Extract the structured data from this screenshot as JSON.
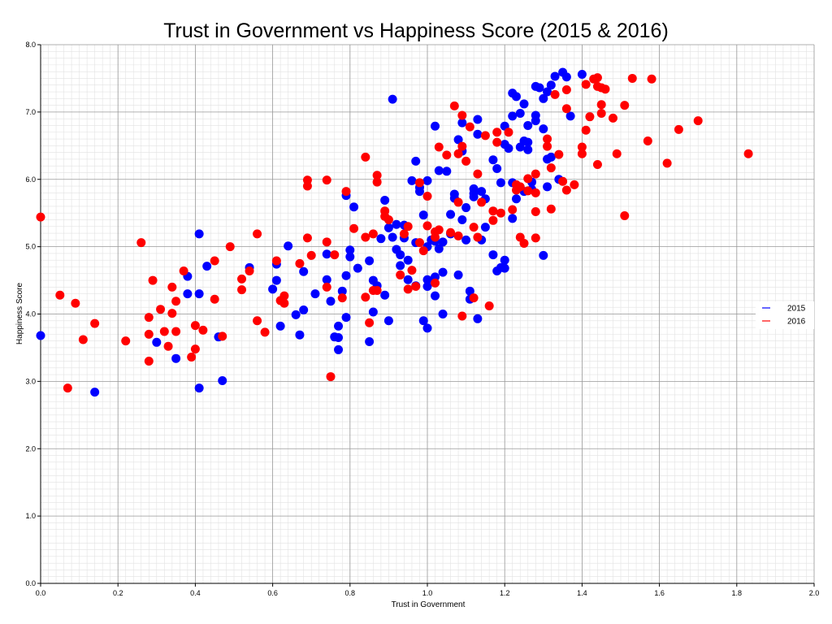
{
  "chart_data": {
    "type": "scatter",
    "title": "Trust in Government vs Happiness Score (2015 & 2016)",
    "xlabel": "Trust in Government",
    "ylabel": "Happiness Score",
    "xlim": [
      0,
      2
    ],
    "ylim": [
      0,
      8
    ],
    "x_ticks": [
      "0.0",
      "0.2",
      "0.4",
      "0.6",
      "0.8",
      "1.0",
      "1.2",
      "1.4",
      "1.6",
      "1.8",
      "2.0"
    ],
    "y_ticks": [
      "0.0",
      "1.0",
      "2.0",
      "3.0",
      "4.0",
      "5.0",
      "6.0",
      "7.0",
      "8.0"
    ],
    "grid": true,
    "legend_position": "right",
    "series": [
      {
        "name": "2015",
        "color": "#0000ff",
        "points": [
          [
            0.0,
            3.68
          ],
          [
            0.14,
            2.84
          ],
          [
            0.3,
            3.58
          ],
          [
            0.35,
            3.34
          ],
          [
            0.38,
            4.3
          ],
          [
            0.38,
            4.56
          ],
          [
            0.41,
            2.9
          ],
          [
            0.41,
            4.3
          ],
          [
            0.41,
            5.19
          ],
          [
            0.43,
            4.71
          ],
          [
            0.46,
            3.66
          ],
          [
            0.47,
            3.01
          ],
          [
            0.54,
            4.69
          ],
          [
            0.6,
            4.37
          ],
          [
            0.61,
            4.74
          ],
          [
            0.61,
            4.5
          ],
          [
            0.62,
            3.82
          ],
          [
            0.64,
            5.01
          ],
          [
            0.66,
            3.99
          ],
          [
            0.67,
            3.69
          ],
          [
            0.68,
            4.06
          ],
          [
            0.68,
            4.63
          ],
          [
            0.71,
            4.3
          ],
          [
            0.74,
            4.89
          ],
          [
            0.74,
            4.51
          ],
          [
            0.75,
            4.19
          ],
          [
            0.76,
            3.66
          ],
          [
            0.77,
            3.47
          ],
          [
            0.77,
            3.65
          ],
          [
            0.77,
            3.82
          ],
          [
            0.78,
            4.34
          ],
          [
            0.79,
            4.57
          ],
          [
            0.79,
            3.95
          ],
          [
            0.79,
            5.76
          ],
          [
            0.8,
            4.95
          ],
          [
            0.8,
            4.85
          ],
          [
            0.81,
            5.59
          ],
          [
            0.82,
            4.68
          ],
          [
            0.85,
            3.59
          ],
          [
            0.85,
            4.79
          ],
          [
            0.86,
            4.03
          ],
          [
            0.86,
            4.5
          ],
          [
            0.87,
            4.42
          ],
          [
            0.88,
            5.12
          ],
          [
            0.89,
            4.28
          ],
          [
            0.89,
            5.69
          ],
          [
            0.9,
            5.28
          ],
          [
            0.9,
            3.9
          ],
          [
            0.91,
            5.14
          ],
          [
            0.91,
            7.19
          ],
          [
            0.92,
            4.96
          ],
          [
            0.92,
            5.33
          ],
          [
            0.93,
            4.72
          ],
          [
            0.93,
            4.88
          ],
          [
            0.94,
            5.13
          ],
          [
            0.94,
            5.32
          ],
          [
            0.95,
            4.8
          ],
          [
            0.95,
            4.51
          ],
          [
            0.96,
            5.98
          ],
          [
            0.97,
            4.42
          ],
          [
            0.97,
            5.06
          ],
          [
            0.97,
            6.27
          ],
          [
            0.98,
            5.82
          ],
          [
            0.98,
            5.88
          ],
          [
            0.99,
            3.9
          ],
          [
            0.99,
            5.47
          ],
          [
            1.0,
            4.41
          ],
          [
            1.0,
            4.51
          ],
          [
            1.0,
            5.0
          ],
          [
            1.0,
            3.79
          ],
          [
            1.0,
            5.98
          ],
          [
            1.01,
            5.1
          ],
          [
            1.02,
            5.08
          ],
          [
            1.02,
            4.55
          ],
          [
            1.02,
            4.27
          ],
          [
            1.02,
            6.79
          ],
          [
            1.03,
            6.13
          ],
          [
            1.03,
            4.97
          ],
          [
            1.04,
            4.62
          ],
          [
            1.04,
            5.07
          ],
          [
            1.04,
            4.0
          ],
          [
            1.05,
            6.12
          ],
          [
            1.06,
            5.19
          ],
          [
            1.06,
            5.48
          ],
          [
            1.07,
            5.72
          ],
          [
            1.07,
            5.78
          ],
          [
            1.08,
            6.59
          ],
          [
            1.08,
            4.58
          ],
          [
            1.09,
            6.42
          ],
          [
            1.09,
            5.4
          ],
          [
            1.09,
            6.84
          ],
          [
            1.1,
            5.1
          ],
          [
            1.1,
            5.58
          ],
          [
            1.11,
            4.34
          ],
          [
            1.11,
            4.22
          ],
          [
            1.12,
            5.79
          ],
          [
            1.12,
            5.74
          ],
          [
            1.12,
            5.86
          ],
          [
            1.13,
            6.89
          ],
          [
            1.13,
            6.67
          ],
          [
            1.13,
            3.93
          ],
          [
            1.14,
            5.1
          ],
          [
            1.14,
            5.82
          ],
          [
            1.15,
            5.29
          ],
          [
            1.15,
            5.71
          ],
          [
            1.17,
            4.88
          ],
          [
            1.17,
            6.29
          ],
          [
            1.18,
            6.16
          ],
          [
            1.18,
            4.64
          ],
          [
            1.19,
            4.69
          ],
          [
            1.19,
            5.95
          ],
          [
            1.2,
            6.52
          ],
          [
            1.2,
            6.79
          ],
          [
            1.2,
            4.8
          ],
          [
            1.2,
            4.68
          ],
          [
            1.21,
            6.46
          ],
          [
            1.22,
            5.95
          ],
          [
            1.22,
            7.28
          ],
          [
            1.22,
            6.94
          ],
          [
            1.22,
            5.42
          ],
          [
            1.23,
            5.71
          ],
          [
            1.23,
            7.23
          ],
          [
            1.24,
            6.48
          ],
          [
            1.24,
            6.98
          ],
          [
            1.25,
            6.57
          ],
          [
            1.25,
            7.12
          ],
          [
            1.25,
            5.82
          ],
          [
            1.26,
            6.44
          ],
          [
            1.26,
            6.55
          ],
          [
            1.26,
            6.8
          ],
          [
            1.27,
            5.96
          ],
          [
            1.27,
            5.85
          ],
          [
            1.28,
            6.95
          ],
          [
            1.28,
            6.87
          ],
          [
            1.28,
            7.38
          ],
          [
            1.29,
            7.36
          ],
          [
            1.3,
            6.75
          ],
          [
            1.3,
            4.87
          ],
          [
            1.3,
            7.2
          ],
          [
            1.31,
            6.3
          ],
          [
            1.31,
            5.89
          ],
          [
            1.31,
            7.3
          ],
          [
            1.32,
            7.4
          ],
          [
            1.32,
            6.33
          ],
          [
            1.33,
            7.53
          ],
          [
            1.34,
            6.0
          ],
          [
            1.35,
            7.59
          ],
          [
            1.36,
            7.52
          ],
          [
            1.37,
            6.94
          ],
          [
            1.4,
            7.56
          ]
        ]
      },
      {
        "name": "2016",
        "color": "#ff0000",
        "points": [
          [
            0.0,
            5.44
          ],
          [
            0.05,
            4.28
          ],
          [
            0.07,
            2.9
          ],
          [
            0.09,
            4.16
          ],
          [
            0.11,
            3.62
          ],
          [
            0.14,
            3.86
          ],
          [
            0.22,
            3.6
          ],
          [
            0.26,
            5.06
          ],
          [
            0.28,
            3.95
          ],
          [
            0.28,
            3.7
          ],
          [
            0.28,
            3.3
          ],
          [
            0.29,
            4.5
          ],
          [
            0.31,
            4.07
          ],
          [
            0.32,
            3.74
          ],
          [
            0.33,
            3.52
          ],
          [
            0.34,
            4.01
          ],
          [
            0.34,
            4.4
          ],
          [
            0.35,
            4.19
          ],
          [
            0.35,
            3.74
          ],
          [
            0.37,
            4.64
          ],
          [
            0.39,
            3.36
          ],
          [
            0.4,
            3.83
          ],
          [
            0.4,
            3.48
          ],
          [
            0.42,
            3.76
          ],
          [
            0.45,
            4.22
          ],
          [
            0.45,
            4.79
          ],
          [
            0.47,
            3.67
          ],
          [
            0.49,
            5.0
          ],
          [
            0.52,
            4.36
          ],
          [
            0.52,
            4.52
          ],
          [
            0.54,
            4.64
          ],
          [
            0.56,
            5.19
          ],
          [
            0.56,
            3.9
          ],
          [
            0.58,
            3.73
          ],
          [
            0.61,
            4.79
          ],
          [
            0.62,
            4.2
          ],
          [
            0.63,
            4.27
          ],
          [
            0.63,
            4.16
          ],
          [
            0.67,
            4.75
          ],
          [
            0.69,
            5.13
          ],
          [
            0.69,
            5.99
          ],
          [
            0.69,
            5.9
          ],
          [
            0.7,
            4.87
          ],
          [
            0.74,
            5.99
          ],
          [
            0.74,
            5.07
          ],
          [
            0.74,
            4.4
          ],
          [
            0.75,
            3.07
          ],
          [
            0.76,
            4.88
          ],
          [
            0.78,
            4.24
          ],
          [
            0.79,
            5.82
          ],
          [
            0.81,
            5.27
          ],
          [
            0.84,
            6.33
          ],
          [
            0.84,
            5.14
          ],
          [
            0.84,
            4.25
          ],
          [
            0.85,
            3.87
          ],
          [
            0.86,
            5.19
          ],
          [
            0.86,
            4.35
          ],
          [
            0.87,
            6.06
          ],
          [
            0.87,
            5.96
          ],
          [
            0.87,
            4.35
          ],
          [
            0.89,
            5.53
          ],
          [
            0.89,
            5.45
          ],
          [
            0.9,
            5.4
          ],
          [
            0.93,
            4.58
          ],
          [
            0.94,
            5.19
          ],
          [
            0.95,
            5.3
          ],
          [
            0.95,
            4.37
          ],
          [
            0.96,
            4.65
          ],
          [
            0.97,
            4.41
          ],
          [
            0.98,
            5.95
          ],
          [
            0.98,
            5.06
          ],
          [
            0.99,
            4.94
          ],
          [
            1.0,
            5.75
          ],
          [
            1.0,
            5.31
          ],
          [
            1.02,
            5.22
          ],
          [
            1.02,
            5.14
          ],
          [
            1.02,
            4.46
          ],
          [
            1.03,
            5.25
          ],
          [
            1.03,
            6.48
          ],
          [
            1.05,
            6.36
          ],
          [
            1.06,
            5.21
          ],
          [
            1.07,
            7.09
          ],
          [
            1.08,
            6.38
          ],
          [
            1.08,
            5.66
          ],
          [
            1.08,
            5.16
          ],
          [
            1.09,
            6.95
          ],
          [
            1.09,
            6.49
          ],
          [
            1.09,
            3.97
          ],
          [
            1.1,
            6.27
          ],
          [
            1.11,
            6.78
          ],
          [
            1.12,
            5.29
          ],
          [
            1.12,
            4.24
          ],
          [
            1.13,
            6.08
          ],
          [
            1.13,
            5.14
          ],
          [
            1.14,
            5.66
          ],
          [
            1.15,
            6.65
          ],
          [
            1.16,
            4.12
          ],
          [
            1.17,
            5.53
          ],
          [
            1.17,
            5.39
          ],
          [
            1.18,
            6.7
          ],
          [
            1.18,
            6.55
          ],
          [
            1.19,
            5.5
          ],
          [
            1.21,
            6.7
          ],
          [
            1.22,
            5.55
          ],
          [
            1.23,
            5.92
          ],
          [
            1.23,
            5.84
          ],
          [
            1.24,
            5.89
          ],
          [
            1.24,
            5.14
          ],
          [
            1.25,
            5.05
          ],
          [
            1.26,
            6.01
          ],
          [
            1.26,
            5.83
          ],
          [
            1.28,
            5.13
          ],
          [
            1.28,
            5.52
          ],
          [
            1.28,
            5.8
          ],
          [
            1.28,
            6.08
          ],
          [
            1.31,
            6.6
          ],
          [
            1.31,
            6.49
          ],
          [
            1.32,
            6.17
          ],
          [
            1.32,
            5.56
          ],
          [
            1.33,
            7.26
          ],
          [
            1.34,
            6.37
          ],
          [
            1.35,
            5.97
          ],
          [
            1.36,
            5.84
          ],
          [
            1.36,
            7.05
          ],
          [
            1.36,
            7.33
          ],
          [
            1.38,
            5.92
          ],
          [
            1.4,
            6.48
          ],
          [
            1.4,
            6.38
          ],
          [
            1.41,
            6.73
          ],
          [
            1.41,
            7.41
          ],
          [
            1.42,
            6.93
          ],
          [
            1.43,
            7.49
          ],
          [
            1.44,
            7.38
          ],
          [
            1.44,
            7.51
          ],
          [
            1.44,
            6.22
          ],
          [
            1.45,
            7.36
          ],
          [
            1.45,
            7.11
          ],
          [
            1.45,
            6.98
          ],
          [
            1.46,
            7.34
          ],
          [
            1.48,
            6.91
          ],
          [
            1.49,
            6.38
          ],
          [
            1.51,
            5.46
          ],
          [
            1.51,
            7.1
          ],
          [
            1.53,
            7.5
          ],
          [
            1.57,
            6.57
          ],
          [
            1.58,
            7.49
          ],
          [
            1.62,
            6.24
          ],
          [
            1.65,
            6.74
          ],
          [
            1.7,
            6.87
          ],
          [
            1.83,
            6.38
          ]
        ]
      }
    ]
  }
}
